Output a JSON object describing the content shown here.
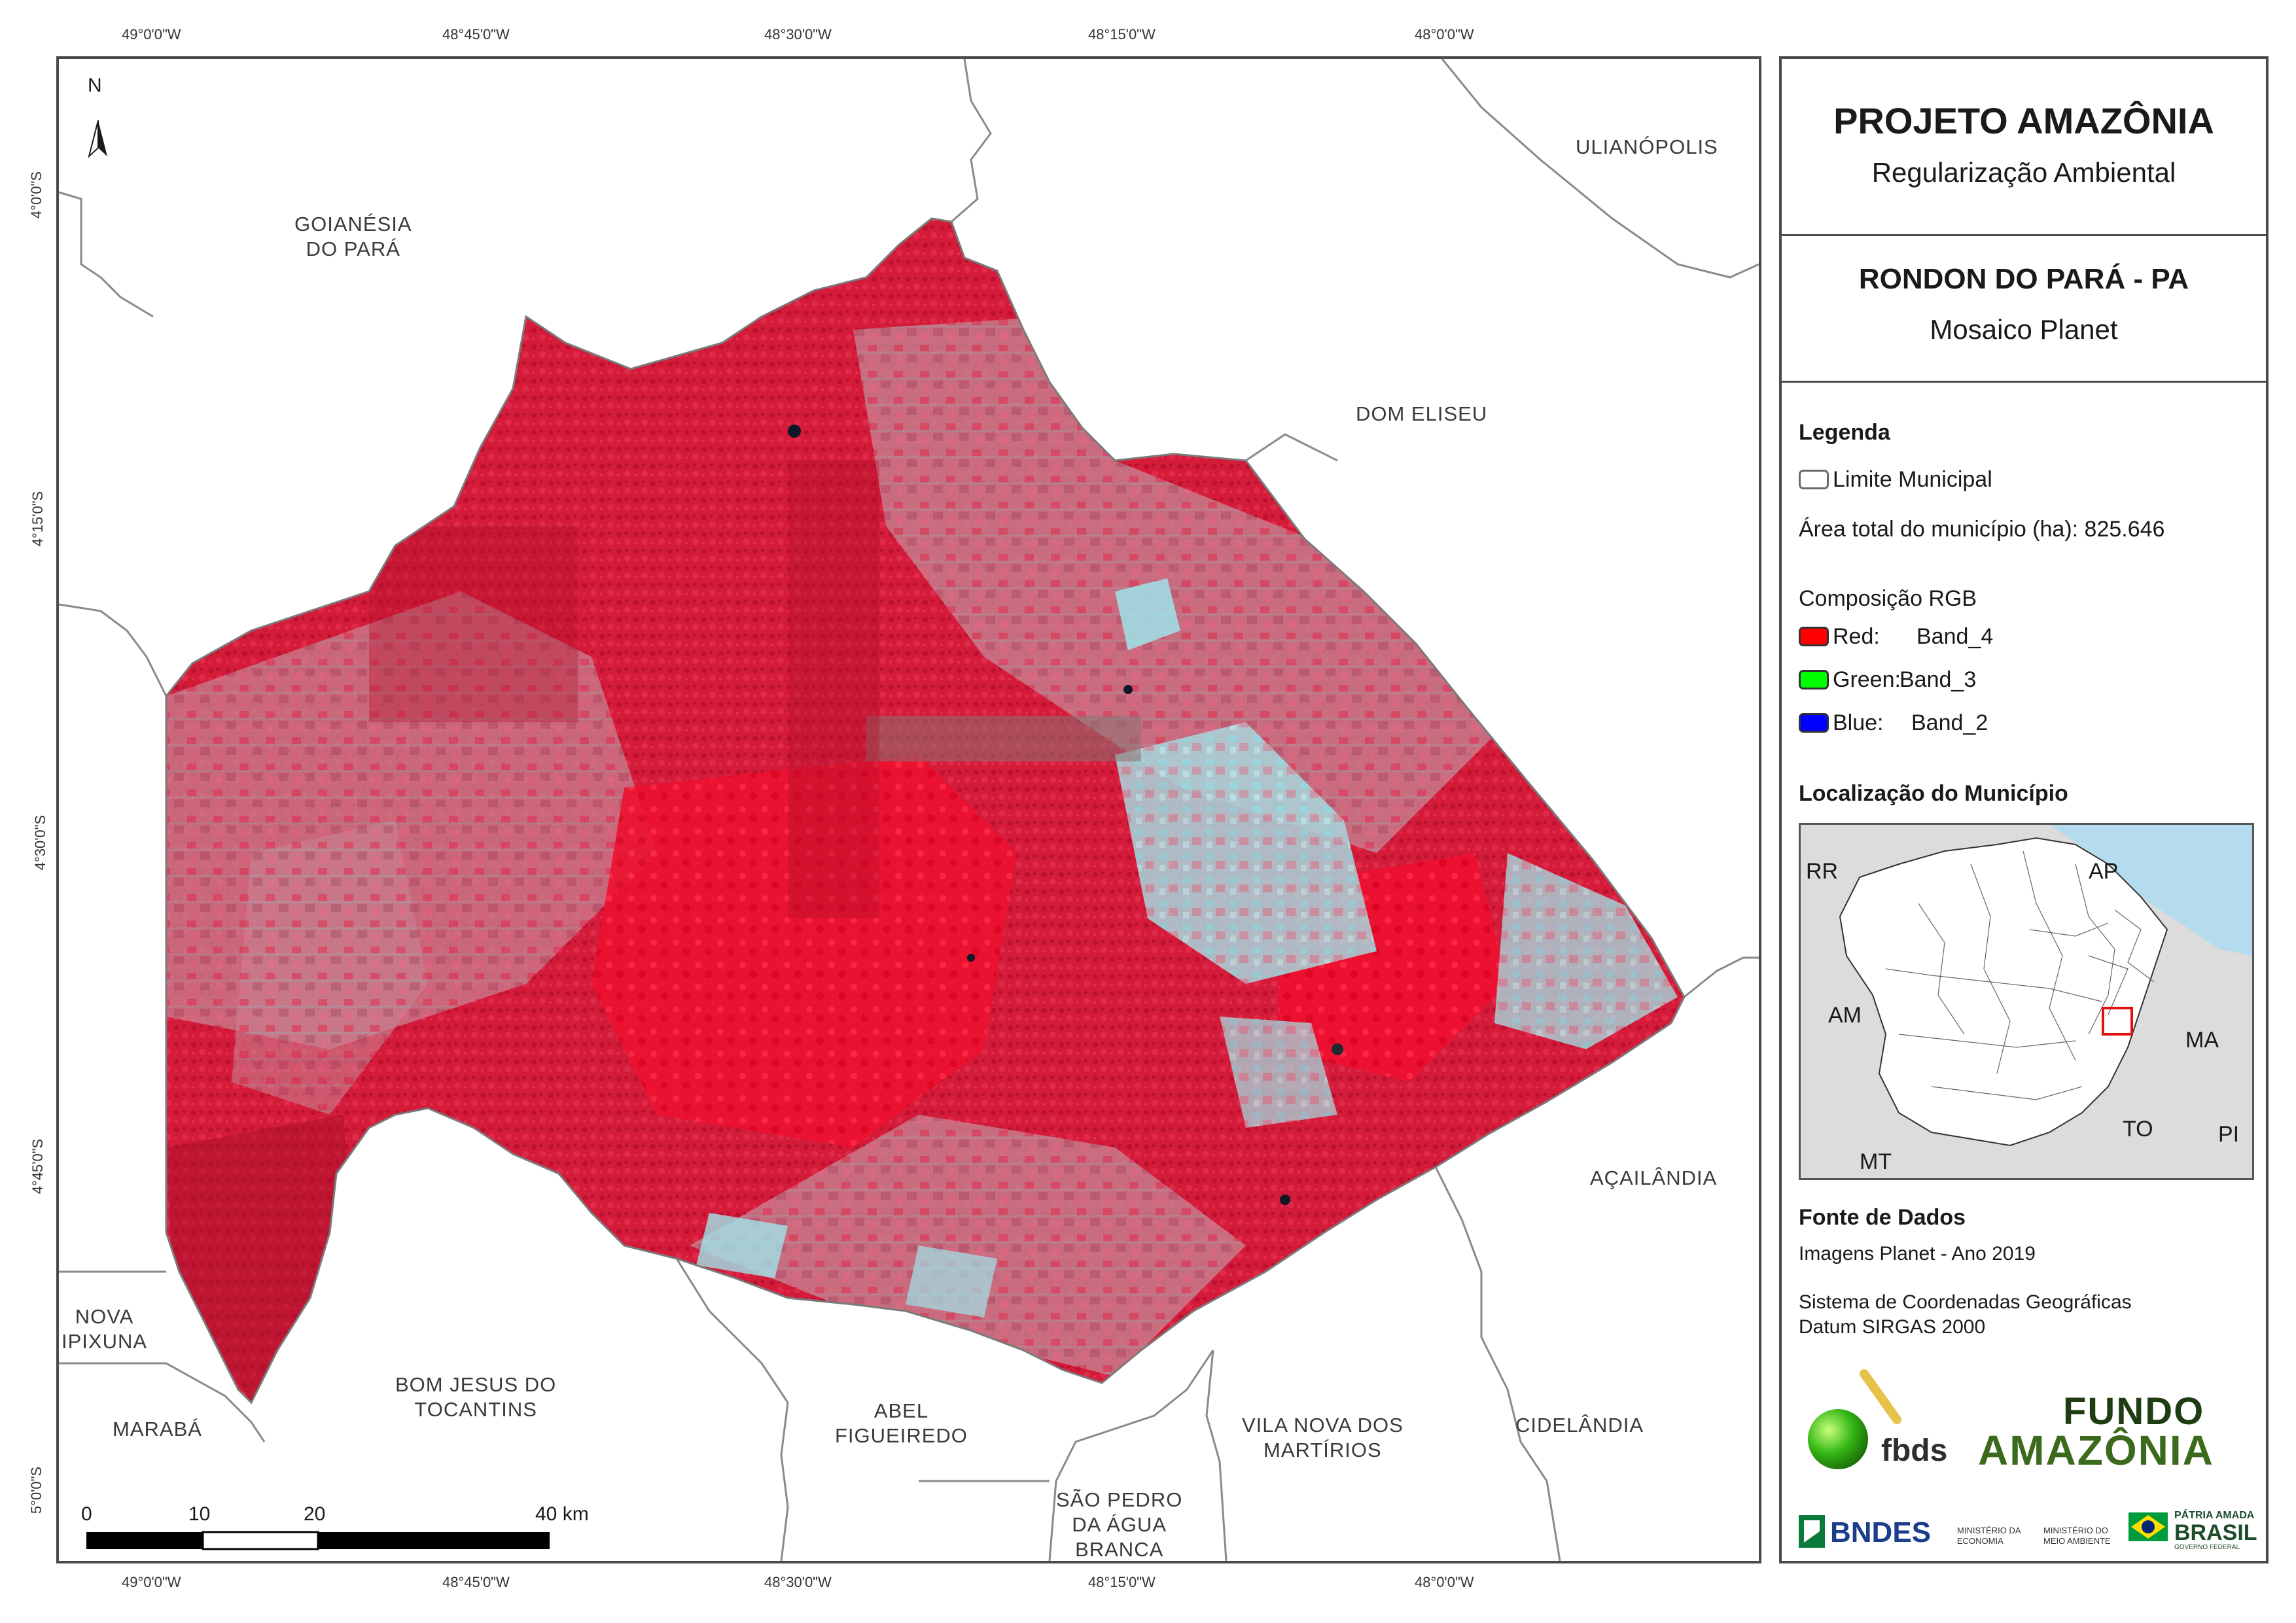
{
  "map": {
    "grid_labels_top": [
      "49°0'0\"W",
      "48°45'0\"W",
      "48°30'0\"W",
      "48°15'0\"W",
      "48°0'0\"W"
    ],
    "grid_labels_bottom": [
      "49°0'0\"W",
      "48°45'0\"W",
      "48°30'0\"W",
      "48°15'0\"W",
      "48°0'0\"W"
    ],
    "grid_labels_left": [
      "4°0'0\"S",
      "4°15'0\"S",
      "4°30'0\"S",
      "4°45'0\"S",
      "5°0'0\"S"
    ],
    "north_label": "N",
    "municipalities": {
      "goianesia": [
        "GOIANÉSIA",
        "DO PARÁ"
      ],
      "ulianopolis": "ULIANÓPOLIS",
      "dom_eliseu": "DOM ELISEU",
      "acailandia": "AÇAILÂNDIA",
      "cidelandia": "CIDELÂNDIA",
      "vila_nova": [
        "VILA NOVA DOS",
        "MARTÍRIOS"
      ],
      "sao_pedro": [
        "SÃO PEDRO",
        "DA ÁGUA",
        "BRANCA"
      ],
      "abel": [
        "ABEL",
        "FIGUEIREDO"
      ],
      "bom_jesus": [
        "BOM JESUS DO",
        "TOCANTINS"
      ],
      "nova_ipixuna": [
        "NOVA",
        "IPIXUNA"
      ],
      "maraba": "MARABÁ"
    },
    "scale_bar": {
      "labels": [
        "0",
        "10",
        "20",
        "40 km"
      ]
    },
    "colors": {
      "forest_red": "#d81e3c",
      "bright_red": "#f0102a",
      "degraded": "#b86a80",
      "cyan": "#9fe4ea",
      "boundary": "#8a8a8a"
    }
  },
  "panel": {
    "title": "PROJETO AMAZÔNIA",
    "subtitle": "Regularização Ambiental",
    "municipality": "RONDON DO PARÁ - PA",
    "mosaic": "Mosaico Planet",
    "legend": {
      "heading": "Legenda",
      "limit_label": "Limite Municipal",
      "area_label": "Área total do município (ha): 825.646",
      "rgb_heading": "Composição RGB",
      "bands": [
        {
          "channel": "Red:",
          "band": "Band_4",
          "color": "#ff0000"
        },
        {
          "channel": "Green:",
          "band": "Band_3",
          "color": "#00ff00"
        },
        {
          "channel": "Blue:",
          "band": "Band_2",
          "color": "#0000ff"
        }
      ]
    },
    "location": {
      "heading": "Localização do Município",
      "states": [
        "RR",
        "AP",
        "AM",
        "MA",
        "TO",
        "PI",
        "MT"
      ]
    },
    "sources": {
      "heading": "Fonte de Dados",
      "line1": "Imagens Planet - Ano 2019",
      "line2": "Sistema de Coordenadas Geográficas",
      "line3": "Datum SIRGAS 2000"
    },
    "logos": {
      "fbds": "fbds",
      "fundo_line1": "FUNDO",
      "fundo_line2": "AMAZÔNIA",
      "bndes": "BNDES",
      "min_economia": [
        "MINISTÉRIO DA",
        "ECONOMIA"
      ],
      "min_meio": [
        "MINISTÉRIO DO",
        "MEIO AMBIENTE"
      ],
      "patria_line1": "PÁTRIA AMADA",
      "patria_line2": "BRASIL",
      "patria_line3": "GOVERNO FEDERAL"
    }
  }
}
